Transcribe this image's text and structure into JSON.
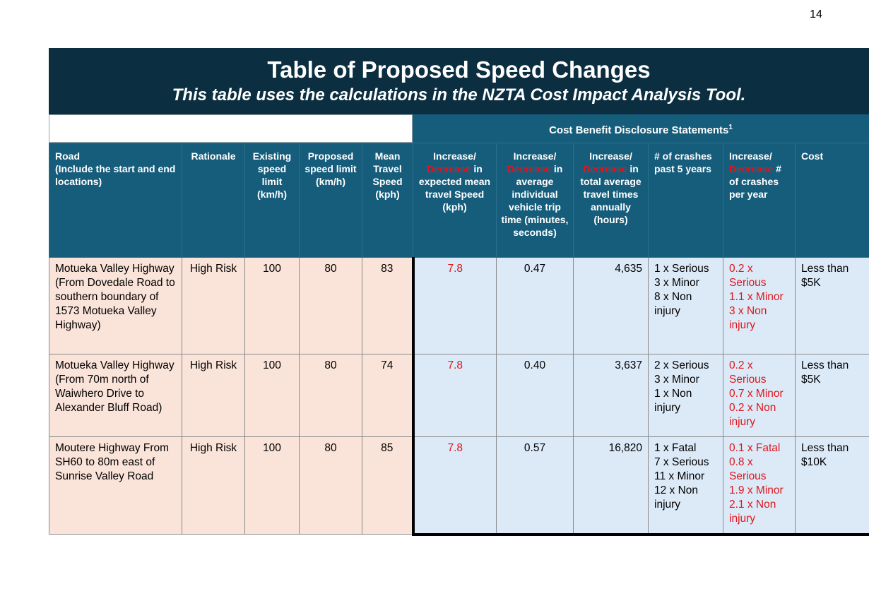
{
  "page_number": "14",
  "title": "Table of Proposed Speed Changes",
  "subtitle": "This table uses the calculations in the NZTA Cost Impact Analysis Tool.",
  "cost_benefit_heading": "Cost Benefit Disclosure Statements",
  "cost_benefit_footnote": "1",
  "headers": {
    "road_1": "Road",
    "road_2": "(Include the start and end locations)",
    "rationale": "Rationale",
    "existing": "Existing speed limit (km/h)",
    "proposed": "Proposed speed limit (km/h)",
    "mean": "Mean Travel Speed (kph)",
    "inc_dec_word": "Increase/",
    "decrease_word": "Decrease",
    "speed_rest": "in expected mean travel Speed (kph)",
    "trip_rest": "in average individual vehicle trip time (minutes, seconds)",
    "total_rest": "in total average travel times annually (hours)",
    "crashes_past": "# of crashes past 5 years",
    "crashes_rest": "# of crashes per year",
    "cost": "Cost"
  },
  "rows": [
    {
      "road": "Motueka Valley Highway (From Dovedale Road to southern boundary of 1573 Motueka Valley Highway)",
      "rationale": "High Risk",
      "existing": "100",
      "proposed": "80",
      "mean": "83",
      "speed_change": "7.8",
      "trip_time": "0.47",
      "total_time": "4,635",
      "crashes_past": [
        "1 x Serious",
        "3 x Minor",
        "8 x Non injury"
      ],
      "crashes_change": [
        "0.2 x Serious",
        "1.1 x Minor",
        "3 x Non injury"
      ],
      "cost": "Less than $5K"
    },
    {
      "road": "Motueka Valley Highway (From 70m north of Waiwhero Drive to Alexander Bluff Road)",
      "rationale": "High Risk",
      "existing": "100",
      "proposed": "80",
      "mean": "74",
      "speed_change": "7.8",
      "trip_time": "0.40",
      "total_time": "3,637",
      "crashes_past": [
        "2 x Serious",
        "3 x Minor",
        "1 x Non injury"
      ],
      "crashes_change": [
        "0.2 x Serious",
        "0.7 x Minor",
        "0.2 x Non injury"
      ],
      "cost": "Less than $5K"
    },
    {
      "road": "Moutere Highway From SH60 to 80m east of Sunrise Valley Road",
      "rationale": "High Risk",
      "existing": "100",
      "proposed": "80",
      "mean": "85",
      "speed_change": "7.8",
      "trip_time": "0.57",
      "total_time": "16,820",
      "crashes_past": [
        "1 x Fatal",
        "7 x Serious",
        "11 x Minor",
        "12 x Non injury"
      ],
      "crashes_change": [
        "0.1 x Fatal",
        "0.8 x Serious",
        "1.9 x Minor",
        "2.1 x Non injury"
      ],
      "cost": "Less than $10K"
    }
  ]
}
